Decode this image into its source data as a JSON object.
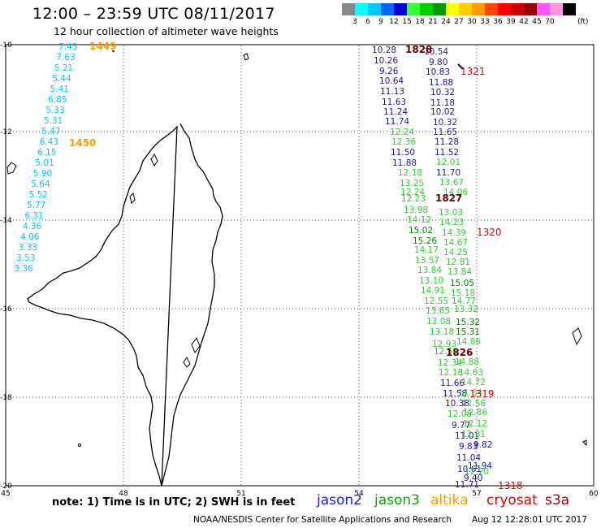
{
  "header": {
    "title": "12:00 – 23:59 UTC 08/11/2017",
    "subtitle": "12 hour collection of altimeter wave heights"
  },
  "legend": {
    "unit": "(ft)",
    "colors": [
      "#888888",
      "#00ffff",
      "#00c8ff",
      "#0064ff",
      "#0000dc",
      "#33ff33",
      "#00d000",
      "#009900",
      "#ffff00",
      "#ffcc00",
      "#ff9900",
      "#ff4400",
      "#ff0000",
      "#cc0000",
      "#990000",
      "#ff55ff",
      "#ff99dd",
      "#000000"
    ],
    "values": [
      "3",
      "6",
      "9",
      "12",
      "15",
      "18",
      "21",
      "24",
      "27",
      "30",
      "33",
      "36",
      "39",
      "42",
      "45",
      "70"
    ]
  },
  "axes": {
    "lon_labels": [
      "45",
      "48",
      "51",
      "54",
      "57",
      "60"
    ],
    "lat_labels": [
      "-10",
      "-12",
      "-14",
      "-16",
      "-18",
      "-20"
    ]
  },
  "passes": {
    "altika_a": {
      "values": [
        "7.43",
        "7.63",
        "5.21",
        "5.44",
        "5.41",
        "6.85",
        "5.33",
        "5.31",
        "5.47",
        "6.43",
        "6.15",
        "5.01",
        "5.90",
        "5.64",
        "5.52",
        "5.77",
        "6.31",
        "4.36",
        "4.06",
        "3.33",
        "3.53",
        "3.36"
      ],
      "times": [
        "1449",
        "1450"
      ]
    },
    "jason2": {
      "values": [
        "10.28",
        "10.26",
        "9.26",
        "10.64",
        "11.13",
        "11.63",
        "11.24",
        "11.74",
        "11.50",
        "11.88",
        "11.66",
        "11.58",
        "10.38",
        "9.77",
        "11.01",
        "11.04",
        "10.61"
      ],
      "times": [
        "1828",
        "1827",
        "1826"
      ]
    },
    "jason2_right": {
      "values": [
        "10.54",
        "9.80",
        "10.83",
        "11.88",
        "10.32",
        "11.18",
        "10.02",
        "10.32",
        "11.65",
        "11.28",
        "11.52",
        "11.70",
        "11.71",
        "9.40",
        "9.82",
        "9.83",
        "11.94"
      ]
    },
    "jason3": {
      "values": [
        "12.24",
        "12.36",
        "12.18",
        "13.25",
        "12.24",
        "12.23",
        "13.98",
        "14.12",
        "15.02",
        "15.26",
        "14.17",
        "13.57",
        "13.84",
        "13.10",
        "14.91",
        "12.55",
        "13.65",
        "13.08",
        "13.18",
        "12.93",
        "12.50",
        "12.34",
        "12.18",
        "12.08",
        "13.03",
        "14.23",
        "14.39",
        "14.67",
        "14.25",
        "12.81",
        "13.84",
        "15.05",
        "15.18",
        "14.77",
        "13.32",
        "15.32",
        "15.31",
        "14.86",
        "14.88",
        "14.63",
        "14.72",
        "12.01",
        "13.67",
        "14.06",
        "11.64",
        "12.56",
        "12.86",
        "12.12",
        "12.81",
        "12.20"
      ]
    },
    "cryosat": {
      "times": [
        "1321",
        "1320",
        "1319",
        "1318"
      ]
    }
  },
  "bottom": {
    "note": "note:  1) Time is in UTC;  2) SWH is in feet",
    "satellites": [
      {
        "name": "jason2",
        "color": "#1a1aff"
      },
      {
        "name": "jason3",
        "color": "#00aa00"
      },
      {
        "name": "altika",
        "color": "#ff9900"
      },
      {
        "name": "cryosat",
        "color": "#dd0000"
      },
      {
        "name": "s3a",
        "color": "#990000"
      }
    ],
    "footer": "NOAA/NESDIS Center for Satellite Applications and Research",
    "generated": "Aug 12 12:28:01 UTC 2017"
  }
}
